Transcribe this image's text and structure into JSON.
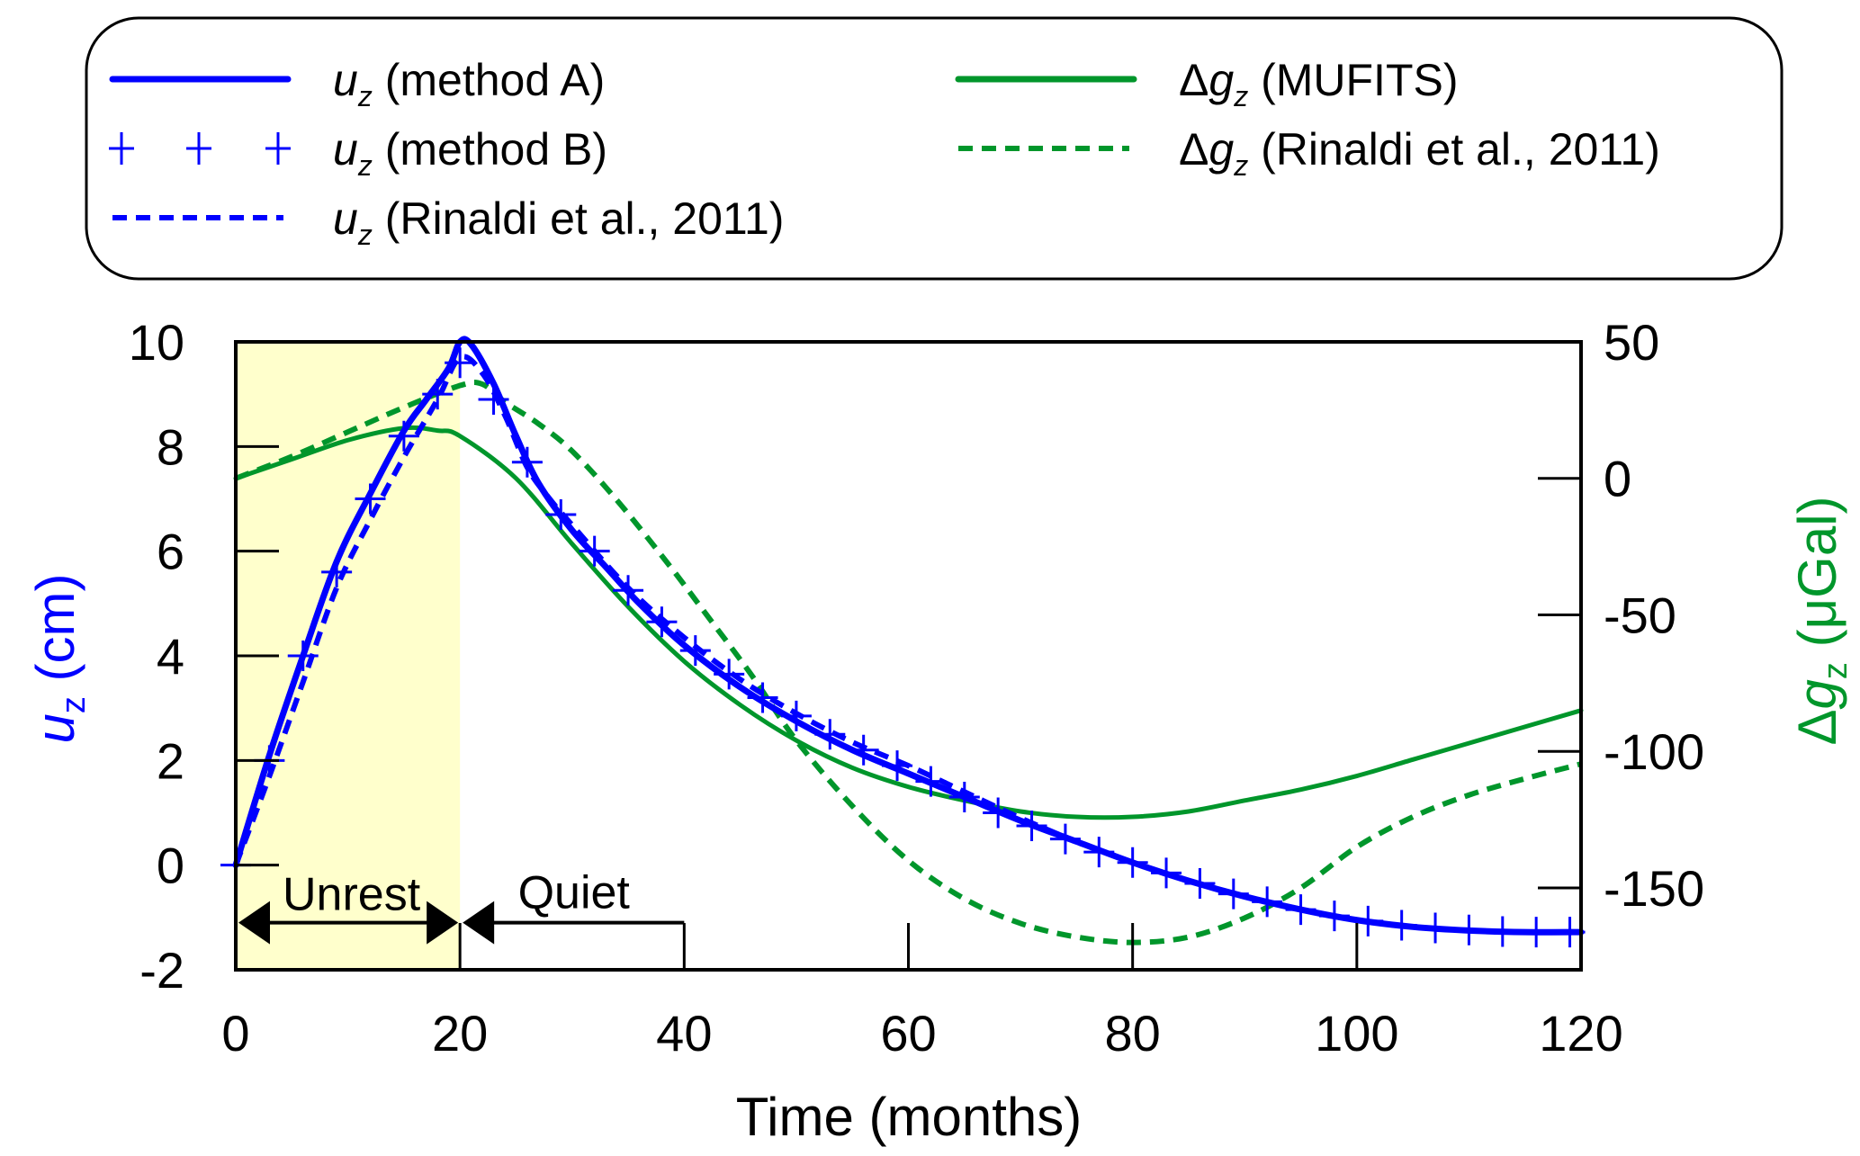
{
  "chart_data": {
    "type": "line",
    "title": "",
    "xlabel": "Time (months)",
    "ylabel_left": {
      "symbol": "u",
      "sub": "z",
      "unit": " (cm)"
    },
    "ylabel_right": {
      "prefix": "Δ",
      "symbol": "g",
      "sub": "z",
      "unit": " (μGal)"
    },
    "xlim": [
      0,
      120
    ],
    "ylim_left": [
      -2,
      10
    ],
    "ylim_right": [
      -180,
      50
    ],
    "xticks": [
      0,
      20,
      40,
      60,
      80,
      100,
      120
    ],
    "yticks_left": [
      -2,
      0,
      2,
      4,
      6,
      8,
      10
    ],
    "yticks_right": [
      -150,
      -100,
      -50,
      0,
      50
    ],
    "grid": false,
    "legend_position": "top",
    "colors": {
      "blue": "#0000ff",
      "green": "#00962b",
      "unrest_shade": "#ffffcc"
    },
    "annotations": {
      "unrest": {
        "label": "Unrest",
        "from": 0,
        "to": 20
      },
      "quiet": {
        "label": "Quiet",
        "from": 20,
        "to": 40
      },
      "arrow_level_cm": -1.1
    },
    "series": [
      {
        "name": "u_z (method A)",
        "legend": {
          "prefix": "",
          "symbol": "u",
          "sub": "z",
          "rest": " (method A)"
        },
        "axis": "left",
        "color": "#0000ff",
        "style": "solid",
        "x": [
          0,
          3,
          6,
          9,
          12,
          15,
          17,
          19,
          20,
          21,
          23,
          25,
          27,
          30,
          33,
          36,
          40,
          45,
          50,
          55,
          60,
          65,
          70,
          75,
          80,
          85,
          90,
          95,
          100,
          105,
          110,
          115,
          120
        ],
        "y": [
          0,
          2.1,
          4.0,
          5.8,
          7.1,
          8.3,
          8.9,
          9.5,
          10.0,
          9.95,
          9.2,
          8.2,
          7.3,
          6.4,
          5.7,
          5.0,
          4.2,
          3.4,
          2.75,
          2.2,
          1.75,
          1.3,
          0.85,
          0.45,
          0.05,
          -0.3,
          -0.6,
          -0.85,
          -1.05,
          -1.18,
          -1.25,
          -1.28,
          -1.28
        ]
      },
      {
        "name": "u_z (method B)",
        "legend": {
          "prefix": "",
          "symbol": "u",
          "sub": "z",
          "rest": " (method B)"
        },
        "axis": "left",
        "color": "#0000ff",
        "style": "markers",
        "x": [
          0,
          3,
          6,
          9,
          12,
          15,
          18,
          20,
          23,
          26,
          29,
          32,
          35,
          38,
          41,
          44,
          47,
          50,
          53,
          56,
          59,
          62,
          65,
          68,
          71,
          74,
          77,
          80,
          83,
          86,
          89,
          92,
          95,
          98,
          101,
          104,
          107,
          110,
          113,
          116,
          119
        ],
        "y": [
          0,
          2.0,
          4.0,
          5.6,
          7.0,
          8.2,
          9.0,
          9.6,
          8.9,
          7.7,
          6.7,
          6.0,
          5.25,
          4.65,
          4.1,
          3.65,
          3.2,
          2.85,
          2.5,
          2.2,
          1.9,
          1.6,
          1.3,
          1.0,
          0.75,
          0.5,
          0.25,
          0.05,
          -0.15,
          -0.35,
          -0.55,
          -0.7,
          -0.85,
          -0.97,
          -1.07,
          -1.15,
          -1.2,
          -1.24,
          -1.27,
          -1.28,
          -1.28
        ]
      },
      {
        "name": "u_z (Rinaldi et al., 2011)",
        "legend": {
          "prefix": "",
          "symbol": "u",
          "sub": "z",
          "rest": " (Rinaldi et al., 2011)"
        },
        "axis": "left",
        "color": "#0000ff",
        "style": "dashed",
        "x": [
          0,
          3,
          6,
          9,
          12,
          15,
          18,
          20,
          22,
          24,
          26,
          28,
          30,
          35,
          40,
          45,
          50,
          55,
          60,
          65,
          70,
          75,
          80,
          85,
          90,
          95,
          100,
          105,
          110,
          115,
          120
        ],
        "y": [
          0,
          1.7,
          3.5,
          5.3,
          6.6,
          7.8,
          8.9,
          9.7,
          9.4,
          8.6,
          7.6,
          7.0,
          6.5,
          5.3,
          4.35,
          3.55,
          2.9,
          2.35,
          1.9,
          1.4,
          0.9,
          0.45,
          0.05,
          -0.3,
          -0.6,
          -0.85,
          -1.05,
          -1.18,
          -1.25,
          -1.28,
          -1.28
        ]
      },
      {
        "name": "Δg_z (MUFITS)",
        "legend": {
          "prefix": "Δ",
          "symbol": "g",
          "sub": "z",
          "rest": " (MUFITS)"
        },
        "axis": "right",
        "color": "#00962b",
        "style": "solid",
        "x": [
          0,
          5,
          10,
          15,
          18,
          20,
          25,
          30,
          35,
          40,
          45,
          50,
          55,
          60,
          65,
          70,
          75,
          80,
          85,
          90,
          95,
          100,
          105,
          110,
          115,
          120
        ],
        "y": [
          0,
          7,
          14,
          18.4,
          17.5,
          15.5,
          0,
          -24,
          -47,
          -67,
          -83,
          -96,
          -106,
          -113,
          -118,
          -122,
          -124,
          -124,
          -122,
          -118,
          -114,
          -109,
          -103,
          -97,
          -91,
          -85
        ]
      },
      {
        "name": "Δg_z (Rinaldi et al., 2011)",
        "legend": {
          "prefix": "Δ",
          "symbol": "g",
          "sub": "z",
          "rest": " (Rinaldi et al., 2011)"
        },
        "axis": "right",
        "color": "#00962b",
        "style": "dashed",
        "x": [
          0,
          5,
          10,
          15,
          20,
          22,
          24,
          27,
          30,
          34,
          38.7,
          42,
          46,
          50,
          55,
          60,
          65,
          70,
          75,
          80,
          85,
          90,
          95,
          100,
          105,
          110,
          115,
          120
        ],
        "y": [
          0,
          8,
          17,
          26,
          34,
          34.5,
          28,
          20,
          10,
          -8,
          -32,
          -50,
          -72,
          -96,
          -120,
          -140,
          -154,
          -163,
          -168,
          -170,
          -168,
          -161,
          -150,
          -135,
          -124,
          -116,
          -110,
          -104.6
        ]
      }
    ]
  }
}
